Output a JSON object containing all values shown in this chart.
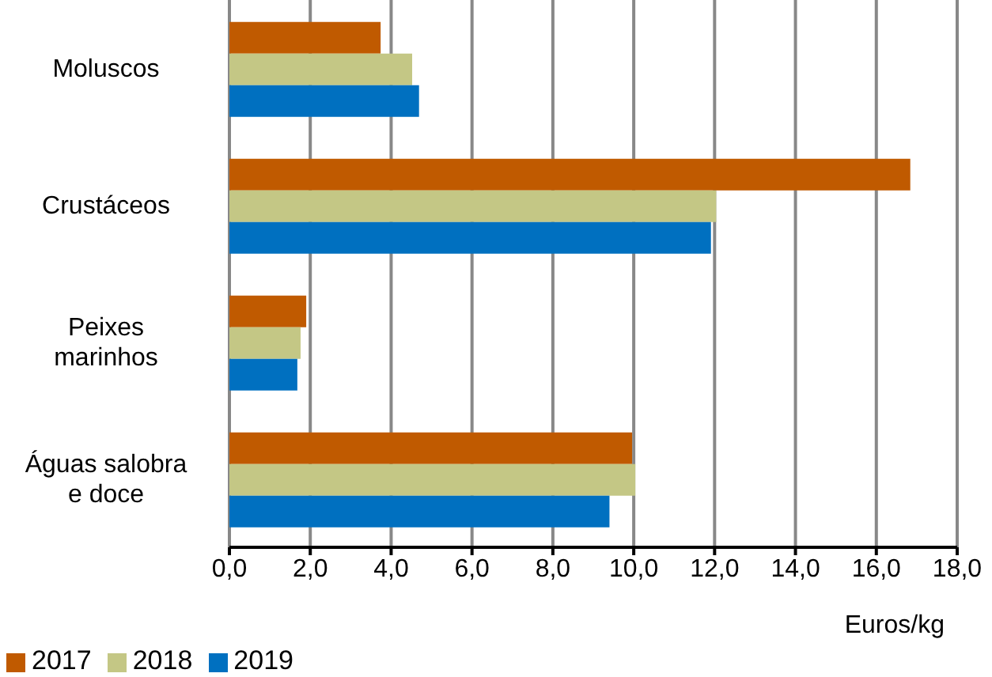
{
  "chart_data": {
    "type": "bar",
    "orientation": "horizontal",
    "categories": [
      "Moluscos",
      "Crustáceos",
      "Peixes marinhos",
      "Águas salobra e doce"
    ],
    "series": [
      {
        "name": "2017",
        "color": "#c05a00",
        "values": [
          3.74,
          16.84,
          1.9,
          9.96
        ]
      },
      {
        "name": "2018",
        "color": "#c4c785",
        "values": [
          4.52,
          12.04,
          1.76,
          10.04
        ]
      },
      {
        "name": "2019",
        "color": "#0070c0",
        "values": [
          4.69,
          11.91,
          1.68,
          9.4
        ]
      }
    ],
    "xlabel": "Euros/kg",
    "xlim": [
      0,
      18
    ],
    "xticks": [
      {
        "value": 0,
        "label": "0,0"
      },
      {
        "value": 2,
        "label": "2,0"
      },
      {
        "value": 4,
        "label": "4,0"
      },
      {
        "value": 6,
        "label": "6,0"
      },
      {
        "value": 8,
        "label": "8,0"
      },
      {
        "value": 10,
        "label": "10,0"
      },
      {
        "value": 12,
        "label": "12,0"
      },
      {
        "value": 14,
        "label": "14,0"
      },
      {
        "value": 16,
        "label": "16,0"
      },
      {
        "value": 18,
        "label": "18,0"
      }
    ],
    "grid": "x",
    "legend": "bottom left"
  }
}
